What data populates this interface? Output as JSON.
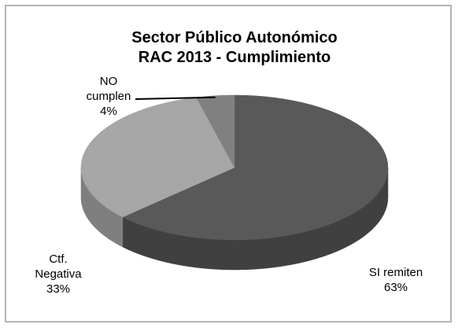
{
  "chart_data": {
    "type": "pie",
    "title": [
      "Sector Público Autonómico",
      "RAC 2013 - Cumplimiento"
    ],
    "slices": [
      {
        "label": [
          "SI remiten"
        ],
        "percent_label": "63%",
        "value": 63,
        "top_color": "#595959",
        "side_color": "#404040"
      },
      {
        "label": [
          "Ctf.",
          "Negativa"
        ],
        "percent_label": "33%",
        "value": 33,
        "top_color": "#a6a6a6",
        "side_color": "#7f7f7f"
      },
      {
        "label": [
          "NO",
          "cumplen"
        ],
        "percent_label": "4%",
        "value": 4,
        "top_color": "#808080",
        "side_color": "#666666"
      }
    ],
    "style": "3d",
    "legend": "none"
  }
}
